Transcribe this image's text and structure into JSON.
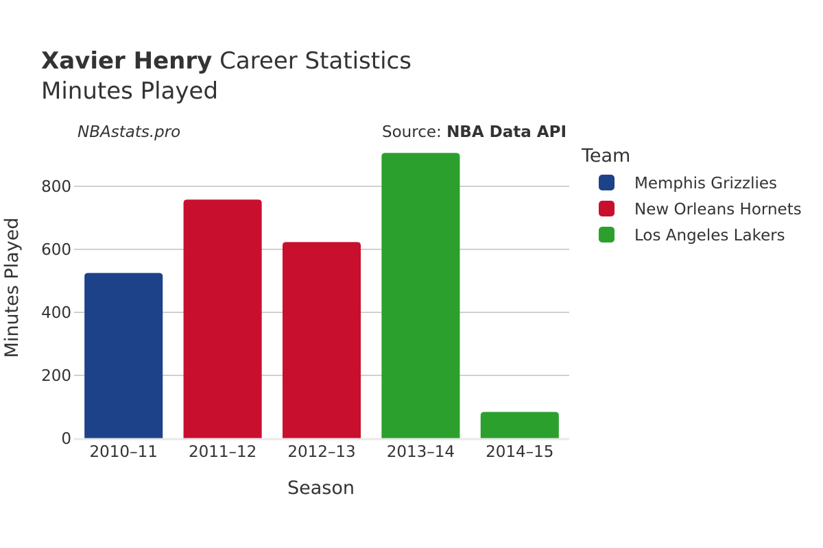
{
  "chart_data": {
    "type": "bar",
    "title_bold": "Xavier Henry",
    "title_rest": " Career Statistics",
    "subtitle": "Minutes Played",
    "watermark": "NBAstats.pro",
    "source_prefix": "Source: ",
    "source_name": "NBA Data API",
    "xlabel": "Season",
    "ylabel": "Minutes Played",
    "ylim": [
      0,
      900
    ],
    "yticks": [
      0,
      200,
      400,
      600,
      800
    ],
    "categories": [
      "2010–11",
      "2011–12",
      "2012–13",
      "2013–14",
      "2014–15"
    ],
    "values": [
      525,
      758,
      623,
      906,
      84
    ],
    "bar_teams": [
      "Memphis Grizzlies",
      "New Orleans Hornets",
      "New Orleans Hornets",
      "Los Angeles Lakers",
      "Los Angeles Lakers"
    ],
    "legend": {
      "title": "Team",
      "position": "right",
      "entries": [
        {
          "name": "Memphis Grizzlies",
          "color": "#1d4289"
        },
        {
          "name": "New Orleans Hornets",
          "color": "#c8102e"
        },
        {
          "name": "Los Angeles Lakers",
          "color": "#2ca02c"
        }
      ]
    },
    "grid": true
  }
}
